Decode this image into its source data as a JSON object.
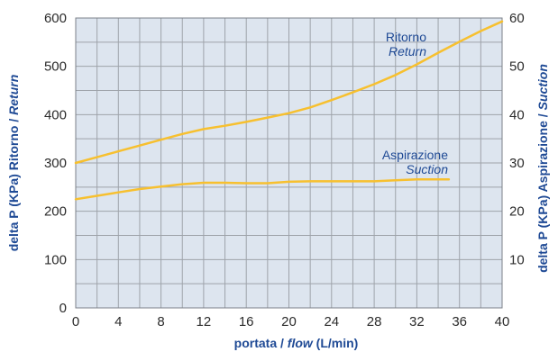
{
  "chart_data": {
    "type": "line",
    "x": [
      0,
      2,
      4,
      6,
      8,
      10,
      12,
      14,
      16,
      18,
      20,
      22,
      24,
      26,
      28,
      30,
      32,
      34,
      36,
      38,
      40
    ],
    "xlim": [
      0,
      40
    ],
    "x_ticks": [
      0,
      4,
      8,
      12,
      16,
      20,
      24,
      28,
      32,
      36,
      40
    ],
    "xlabel": {
      "prefix": "portata / ",
      "italic": "flow",
      "suffix": " (L/min)"
    },
    "left_axis": {
      "label": {
        "prefix": "delta P (KPa) Ritorno / ",
        "italic": "Return"
      },
      "ylim": [
        0,
        600
      ],
      "ticks": [
        0,
        100,
        200,
        300,
        400,
        500,
        600
      ]
    },
    "right_axis": {
      "label": {
        "prefix": "delta P (KPa) Aspirazione / ",
        "italic": "Suction"
      },
      "ylim": [
        0,
        60
      ],
      "ticks": [
        10,
        20,
        30,
        40,
        50,
        60
      ]
    },
    "series": [
      {
        "name": "Ritorno",
        "italic_name": "Return",
        "axis": "left",
        "color": "#f7c02f",
        "x": [
          0,
          2,
          4,
          6,
          8,
          10,
          12,
          14,
          16,
          18,
          20,
          22,
          24,
          26,
          28,
          30,
          32,
          34,
          36,
          38,
          40
        ],
        "values": [
          300,
          312,
          324,
          336,
          348,
          360,
          370,
          377,
          385,
          394,
          403,
          415,
          430,
          446,
          463,
          482,
          504,
          528,
          551,
          573,
          593
        ]
      },
      {
        "name": "Aspirazione",
        "italic_name": "Suction",
        "axis": "right",
        "color": "#f7c02f",
        "x": [
          0,
          2,
          4,
          6,
          8,
          10,
          12,
          14,
          16,
          18,
          20,
          22,
          24,
          26,
          28,
          30,
          32,
          34,
          35
        ],
        "values": [
          22.5,
          23.2,
          23.9,
          24.6,
          25.1,
          25.6,
          25.9,
          25.9,
          25.8,
          25.8,
          26.1,
          26.2,
          26.2,
          26.2,
          26.2,
          26.4,
          26.6,
          26.6,
          26.6
        ]
      }
    ],
    "grid": true,
    "grid_color": "#9ea3aa",
    "background": "#dde5ef"
  }
}
